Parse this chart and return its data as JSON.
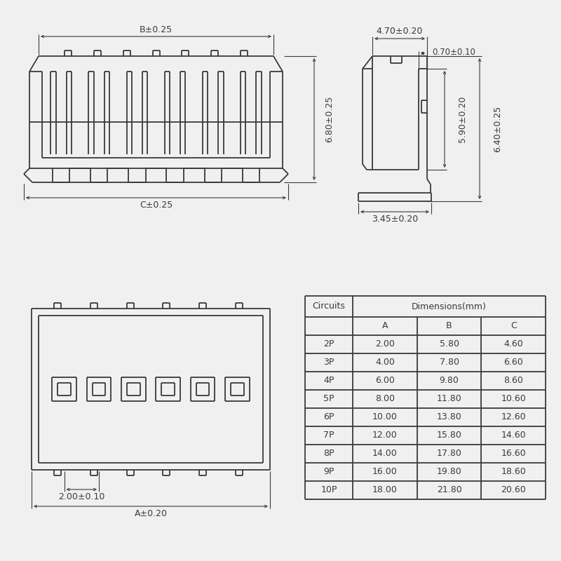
{
  "bg_color": "#f0f0f0",
  "line_color": "#3a3a3a",
  "dim_labels_front": {
    "B": "B±0.25",
    "C": "C±0.25",
    "height": "6.80±0.25"
  },
  "dim_labels_side": {
    "top_width": "4.70±0.20",
    "wall": "0.70±0.10",
    "inner_h": "5.90±0.20",
    "outer_h": "6.40±0.25",
    "bot_width": "3.45±0.20"
  },
  "dim_labels_bottom": {
    "pitch": "2.00±0.10",
    "A": "A±0.20"
  },
  "table_data": {
    "circuits": [
      "2P",
      "3P",
      "4P",
      "5P",
      "6P",
      "7P",
      "8P",
      "9P",
      "10P"
    ],
    "A": [
      "2.00",
      "4.00",
      "6.00",
      "8.00",
      "10.00",
      "12.00",
      "14.00",
      "16.00",
      "18.00"
    ],
    "B": [
      "5.80",
      "7.80",
      "9.80",
      "11.80",
      "13.80",
      "15.80",
      "17.80",
      "19.80",
      "21.80"
    ],
    "C": [
      "4.60",
      "6.60",
      "8.60",
      "10.60",
      "12.60",
      "14.60",
      "16.60",
      "18.60",
      "20.60"
    ]
  }
}
